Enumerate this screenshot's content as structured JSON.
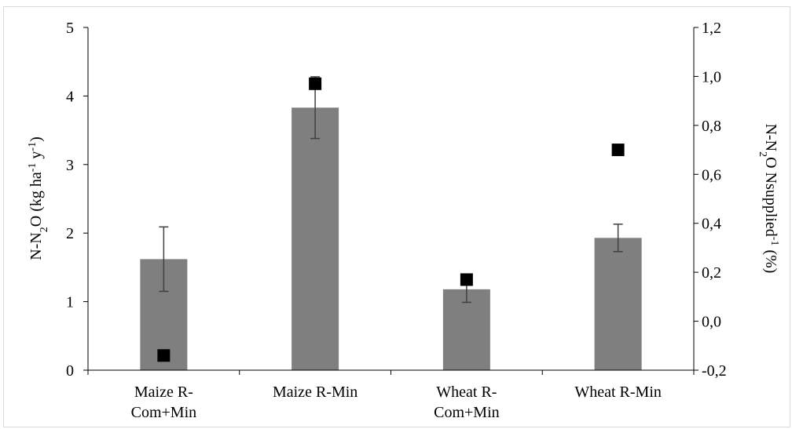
{
  "chart_data": {
    "type": "bar",
    "categories": [
      [
        "Maize R-",
        "Com+Min"
      ],
      [
        "Maize R-Min"
      ],
      [
        "Wheat R-",
        "Com+Min"
      ],
      [
        "Wheat R-Min"
      ]
    ],
    "series": [
      {
        "kind": "bar",
        "axis": "left",
        "values": [
          1.62,
          3.83,
          1.18,
          1.93
        ],
        "error": [
          0.47,
          0.45,
          0.19,
          0.2
        ],
        "color": "#7f7f7f"
      },
      {
        "kind": "marker",
        "axis": "right",
        "values": [
          -0.14,
          0.97,
          0.17,
          0.7
        ],
        "color": "#000000"
      }
    ],
    "ylabel_left": {
      "base": "N-N",
      "sub": "2",
      "mid": "O (kg ha",
      "sup1": "-1",
      "mid2": " y",
      "sup2": "-1",
      "end": ")"
    },
    "ylabel_right": {
      "base": "N-N",
      "sub": "2",
      "mid": "O Nsupplied",
      "sup": "-1",
      "end": " (%)"
    },
    "ylim_left": [
      0,
      5
    ],
    "yticks_left": [
      "0",
      "1",
      "2",
      "3",
      "4",
      "5"
    ],
    "ylim_right": [
      -0.2,
      1.2
    ],
    "yticks_right": [
      "-0,2",
      "0,0",
      "0,2",
      "0,4",
      "0,6",
      "0,8",
      "1,0",
      "1,2"
    ],
    "grid": false,
    "colors": {
      "bar": "#7f7f7f",
      "error_bar": "#404040",
      "marker": "#000000",
      "axis": "#000000",
      "border": "#d9d9d9"
    }
  }
}
